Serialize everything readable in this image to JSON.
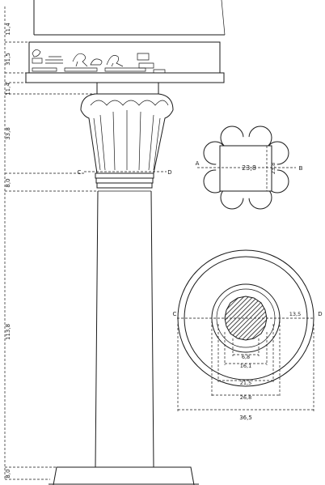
{
  "vertical_dimensions": {
    "abacus_top": "11,4",
    "architrave": "31,5",
    "abacus": "11,4",
    "capital": "33,8",
    "bands": "8,0",
    "shaft": "113,8",
    "base": "8,0"
  },
  "section_letters": {
    "capital_left": "C",
    "capital_right": "D",
    "plan_left": "A",
    "plan_right": "B",
    "base_plan_left": "C",
    "base_plan_right": "D"
  },
  "abacus_plan": {
    "width": "23,8",
    "depth": "23,8"
  },
  "base_plan": {
    "offset": "13,5",
    "d1": "6,8",
    "d2": "16,1",
    "d3": "21,5",
    "d4": "26,8",
    "overall": "36,5"
  },
  "colors": {
    "ink": "#1a1a1a",
    "paper": "#ffffff"
  }
}
